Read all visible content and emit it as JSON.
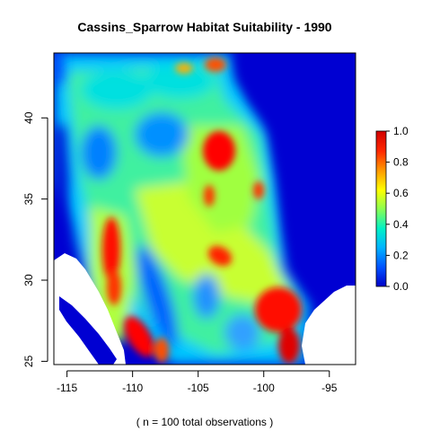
{
  "chart_data": {
    "type": "heatmap",
    "title": "Cassins_Sparrow Habitat Suitability - 1990",
    "xlabel": "",
    "ylabel": "",
    "caption": "( n = 100 total observations )",
    "xlim": [
      -116,
      -93
    ],
    "ylim": [
      24.8,
      44
    ],
    "x_ticks": [
      -115,
      -110,
      -105,
      -100,
      -95
    ],
    "x_tick_labels": [
      "-115",
      "-110",
      "-105",
      "-100",
      "-95"
    ],
    "y_ticks": [
      25,
      30,
      35,
      40
    ],
    "y_tick_labels": [
      "25",
      "30",
      "35",
      "40"
    ],
    "grid": false,
    "legend": {
      "placement": "right",
      "range": [
        0,
        1
      ],
      "ticks": [
        0.0,
        0.2,
        0.4,
        0.6,
        0.8,
        1.0
      ],
      "tick_labels": [
        "0.0",
        "0.2",
        "0.4",
        "0.6",
        "0.8",
        "1.0"
      ],
      "colors": [
        "#0000c8",
        "#0050ff",
        "#00b4ff",
        "#00f0c8",
        "#8cff50",
        "#ffff00",
        "#ff9600",
        "#ff2800",
        "#d20000"
      ]
    },
    "hotspots": [
      {
        "lon": -103.8,
        "lat": 37.6,
        "value": 0.95
      },
      {
        "lon": -98.4,
        "lat": 28.2,
        "value": 0.95
      },
      {
        "lon": -97.8,
        "lat": 26.0,
        "value": 0.9
      },
      {
        "lon": -111.5,
        "lat": 31.5,
        "value": 0.95
      },
      {
        "lon": -111.2,
        "lat": 29.0,
        "value": 0.9
      },
      {
        "lon": -109.6,
        "lat": 26.0,
        "value": 0.9
      },
      {
        "lon": -103.0,
        "lat": 31.6,
        "value": 0.85
      },
      {
        "lon": -100.2,
        "lat": 35.6,
        "value": 0.85
      },
      {
        "lon": -104.5,
        "lat": 35.3,
        "value": 0.85
      },
      {
        "lon": -107.6,
        "lat": 25.8,
        "value": 0.8
      },
      {
        "lon": -104.0,
        "lat": 43.4,
        "value": 0.8
      },
      {
        "lon": -107.0,
        "lat": 43.2,
        "value": 0.7
      }
    ]
  }
}
